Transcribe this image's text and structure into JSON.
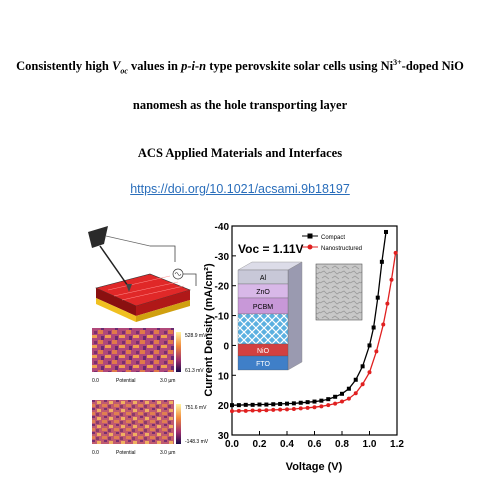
{
  "header": {
    "title_part1": "Consistently high ",
    "title_voc_main": "V",
    "title_voc_sub": "oc",
    "title_part2": " values in ",
    "title_pin": "p-i-n",
    "title_part3": " type perovskite solar cells using Ni",
    "title_ni_sup": "3+",
    "title_part4": "-doped NiO",
    "title_line2": "nanomesh as the hole transporting layer",
    "journal": "ACS Applied Materials and Interfaces",
    "doi": "https://doi.org/10.1021/acsami.9b18197"
  },
  "kpfm": {
    "top_max": "528.9 mV",
    "top_min": "61.3 mV",
    "bottom_max": "751.6 mV",
    "bottom_min": "-148.3 mV",
    "axis_start": "0.0",
    "axis_label": "Potential",
    "axis_end": "3.0 µm"
  },
  "stack": {
    "layers": [
      "Al",
      "ZnO",
      "PCBM",
      "",
      "NiO",
      "FTO"
    ],
    "colors": [
      "#c8c8d8",
      "#d8b8e8",
      "#c898d8",
      "#5bb0e0",
      "#d24040",
      "#3f7fc8"
    ]
  },
  "chart_data": {
    "type": "line",
    "ylabel": "Current Density (mA/cm²)",
    "xlabel": "Voltage (V)",
    "annotation": "Voc = 1.11V",
    "xlim": [
      0.0,
      1.2
    ],
    "ylim": [
      -40,
      30
    ],
    "yaxis_inverted": true,
    "xticks": [
      "0.0",
      "0.2",
      "0.4",
      "0.6",
      "0.8",
      "1.0",
      "1.2"
    ],
    "yticks": [
      "-40",
      "-30",
      "-20",
      "-10",
      "0",
      "10",
      "20",
      "30"
    ],
    "legend_position": "top-right",
    "series": [
      {
        "name": "Compact",
        "color": "#000000",
        "marker": "square",
        "x": [
          0.0,
          0.05,
          0.1,
          0.15,
          0.2,
          0.25,
          0.3,
          0.35,
          0.4,
          0.45,
          0.5,
          0.55,
          0.6,
          0.65,
          0.7,
          0.75,
          0.8,
          0.85,
          0.9,
          0.95,
          1.0,
          1.03,
          1.06,
          1.09,
          1.12
        ],
        "y": [
          20.0,
          20.0,
          19.9,
          19.9,
          19.8,
          19.8,
          19.7,
          19.6,
          19.5,
          19.4,
          19.2,
          19.0,
          18.8,
          18.5,
          18.0,
          17.2,
          16.2,
          14.5,
          11.5,
          7.0,
          0.0,
          -6.0,
          -16.0,
          -28.0,
          -38.0
        ]
      },
      {
        "name": "Nanostructured",
        "color": "#e02020",
        "marker": "circle",
        "x": [
          0.0,
          0.05,
          0.1,
          0.15,
          0.2,
          0.25,
          0.3,
          0.35,
          0.4,
          0.45,
          0.5,
          0.55,
          0.6,
          0.65,
          0.7,
          0.75,
          0.8,
          0.85,
          0.9,
          0.95,
          1.0,
          1.05,
          1.1,
          1.13,
          1.16,
          1.19
        ],
        "y": [
          22.0,
          21.9,
          21.9,
          21.8,
          21.8,
          21.7,
          21.6,
          21.5,
          21.4,
          21.3,
          21.1,
          20.9,
          20.7,
          20.4,
          20.0,
          19.5,
          18.8,
          17.8,
          16.0,
          13.0,
          9.0,
          2.0,
          -7.0,
          -14.0,
          -22.0,
          -31.0
        ]
      }
    ]
  }
}
